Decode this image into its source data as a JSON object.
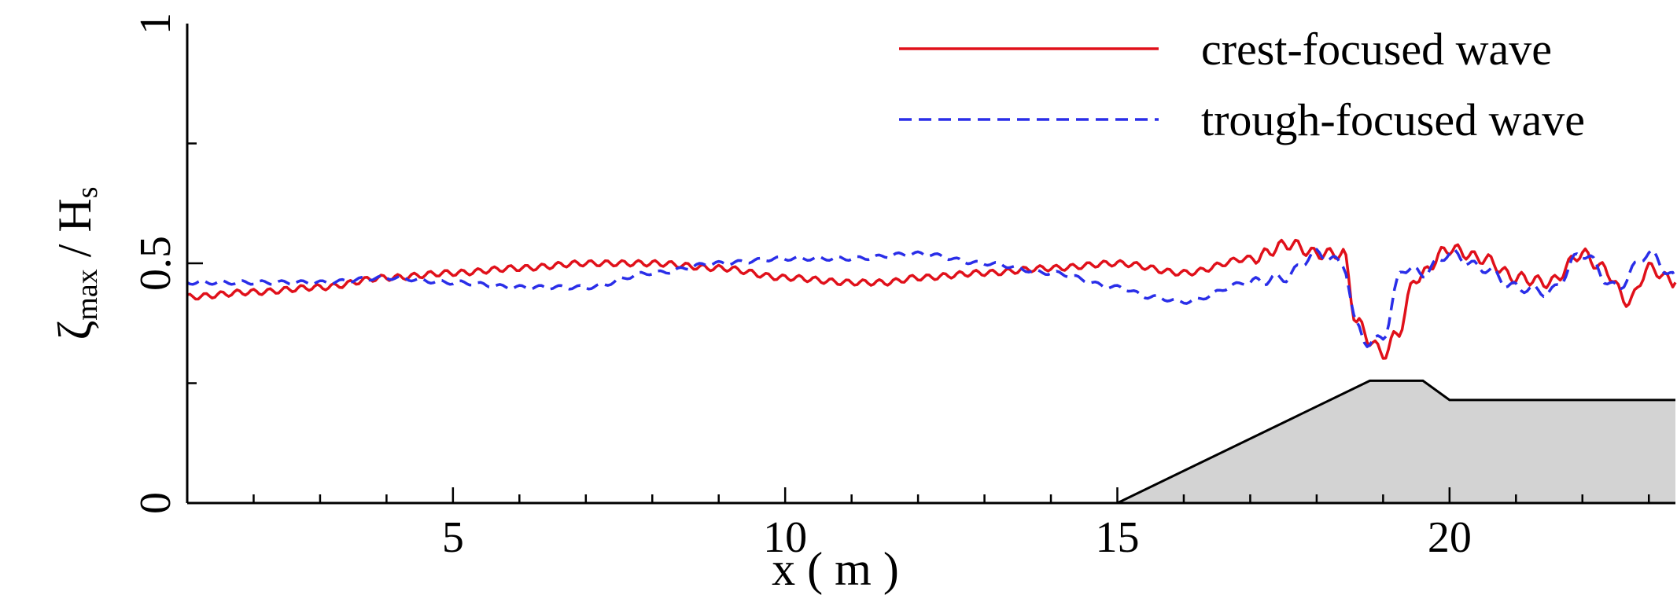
{
  "chart_data": {
    "type": "line",
    "xlabel": "x ( m )",
    "ylabel_main": "ζ",
    "ylabel_sub": "max",
    "ylabel_tail": " / H",
    "ylabel_tail_sub": "s",
    "xlim": [
      1.0,
      23.4
    ],
    "ylim": [
      0,
      1
    ],
    "x_ticks": [
      5,
      10,
      15,
      20
    ],
    "x_tick_labels": [
      "5",
      "10",
      "15",
      "20"
    ],
    "y_ticks": [
      0,
      0.5,
      1
    ],
    "y_tick_labels": [
      "0",
      "0.5",
      "1"
    ],
    "legend_position": "top-right",
    "series": [
      {
        "name": "crest-focused wave",
        "color": "#e0101a",
        "style": "solid",
        "x": [
          1.0,
          2.0,
          3.0,
          4.0,
          5.0,
          6.0,
          7.0,
          8.0,
          9.0,
          10.0,
          11.0,
          11.5,
          12.0,
          13.0,
          14.0,
          15.0,
          16.0,
          17.0,
          17.6,
          18.0,
          18.4,
          18.6,
          18.8,
          19.0,
          19.2,
          19.5,
          20.0,
          20.5,
          21.0,
          21.5,
          22.0,
          22.3,
          22.7,
          23.0,
          23.4
        ],
        "y": [
          0.43,
          0.44,
          0.45,
          0.47,
          0.48,
          0.49,
          0.5,
          0.5,
          0.49,
          0.47,
          0.46,
          0.46,
          0.47,
          0.48,
          0.49,
          0.5,
          0.48,
          0.51,
          0.54,
          0.52,
          0.52,
          0.38,
          0.34,
          0.31,
          0.35,
          0.47,
          0.53,
          0.51,
          0.47,
          0.46,
          0.52,
          0.49,
          0.42,
          0.49,
          0.46
        ]
      },
      {
        "name": "trough-focused wave",
        "color": "#2a2ee8",
        "style": "dashed",
        "x": [
          1.0,
          2.0,
          3.0,
          4.0,
          5.0,
          6.0,
          7.0,
          8.0,
          9.0,
          10.0,
          11.0,
          12.0,
          13.0,
          14.0,
          15.0,
          15.5,
          16.0,
          17.0,
          17.5,
          18.0,
          18.4,
          18.6,
          18.8,
          19.0,
          19.3,
          19.6,
          20.0,
          20.5,
          21.0,
          21.5,
          22.0,
          22.5,
          23.0,
          23.4
        ],
        "y": [
          0.46,
          0.46,
          0.46,
          0.47,
          0.46,
          0.45,
          0.45,
          0.48,
          0.5,
          0.51,
          0.51,
          0.52,
          0.5,
          0.48,
          0.45,
          0.43,
          0.42,
          0.46,
          0.47,
          0.52,
          0.5,
          0.37,
          0.33,
          0.35,
          0.49,
          0.48,
          0.52,
          0.49,
          0.45,
          0.44,
          0.52,
          0.45,
          0.52,
          0.47
        ]
      }
    ],
    "bathymetry": {
      "fill": "#d3d3d3",
      "x": [
        15.0,
        18.8,
        19.6,
        20.0,
        23.4
      ],
      "y": [
        0.0,
        0.255,
        0.255,
        0.215,
        0.215
      ]
    }
  }
}
